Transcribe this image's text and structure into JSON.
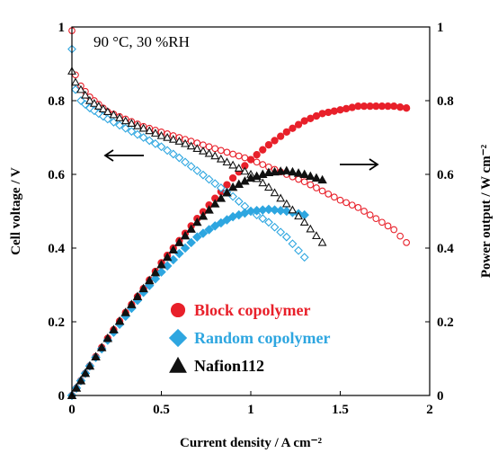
{
  "chart_data": {
    "type": "scatter",
    "annotation": "90 °C, 30 %RH",
    "xlabel": "Current density / A cm⁻²",
    "ylabel_left": "Cell voltage / V",
    "ylabel_right": "Power output / W cm⁻²",
    "xlim": [
      0,
      2
    ],
    "ylim_left": [
      0,
      1
    ],
    "ylim_right": [
      0,
      1
    ],
    "x_ticks": [
      "0",
      "0.5",
      "1",
      "1.5",
      "2"
    ],
    "y_ticks_left": [
      "0",
      "0.2",
      "0.4",
      "0.6",
      "0.8",
      "1"
    ],
    "y_ticks_right": [
      "0",
      "0.2",
      "0.4",
      "0.6",
      "0.8",
      "1"
    ],
    "grid": false,
    "legend_position": "bottom-center",
    "arrows": [
      {
        "direction": "left",
        "axis": "voltage"
      },
      {
        "direction": "right",
        "axis": "power"
      }
    ],
    "series": [
      {
        "name": "Block  copolymer",
        "color": "#e8202a",
        "marker": "circle",
        "voltage": [
          [
            0,
            0.99
          ],
          [
            0.02,
            0.87
          ],
          [
            0.05,
            0.84
          ],
          [
            0.1,
            0.81
          ],
          [
            0.15,
            0.79
          ],
          [
            0.2,
            0.77
          ],
          [
            0.3,
            0.75
          ],
          [
            0.4,
            0.73
          ],
          [
            0.5,
            0.715
          ],
          [
            0.6,
            0.7
          ],
          [
            0.7,
            0.685
          ],
          [
            0.8,
            0.67
          ],
          [
            0.9,
            0.655
          ],
          [
            1.0,
            0.64
          ],
          [
            1.1,
            0.62
          ],
          [
            1.2,
            0.6
          ],
          [
            1.3,
            0.58
          ],
          [
            1.4,
            0.555
          ],
          [
            1.5,
            0.53
          ],
          [
            1.6,
            0.51
          ],
          [
            1.7,
            0.48
          ],
          [
            1.8,
            0.45
          ],
          [
            1.87,
            0.415
          ]
        ],
        "power": [
          [
            0,
            0
          ],
          [
            0.05,
            0.04
          ],
          [
            0.1,
            0.08
          ],
          [
            0.2,
            0.155
          ],
          [
            0.3,
            0.225
          ],
          [
            0.4,
            0.29
          ],
          [
            0.5,
            0.36
          ],
          [
            0.6,
            0.42
          ],
          [
            0.7,
            0.48
          ],
          [
            0.8,
            0.535
          ],
          [
            0.9,
            0.59
          ],
          [
            1.0,
            0.64
          ],
          [
            1.1,
            0.68
          ],
          [
            1.2,
            0.715
          ],
          [
            1.3,
            0.745
          ],
          [
            1.4,
            0.765
          ],
          [
            1.5,
            0.775
          ],
          [
            1.6,
            0.785
          ],
          [
            1.7,
            0.785
          ],
          [
            1.8,
            0.785
          ],
          [
            1.87,
            0.78
          ]
        ]
      },
      {
        "name": "Random copolymer",
        "color": "#2ea6e0",
        "marker": "diamond",
        "voltage": [
          [
            0,
            0.94
          ],
          [
            0.02,
            0.83
          ],
          [
            0.05,
            0.8
          ],
          [
            0.1,
            0.78
          ],
          [
            0.15,
            0.765
          ],
          [
            0.2,
            0.75
          ],
          [
            0.3,
            0.725
          ],
          [
            0.4,
            0.7
          ],
          [
            0.5,
            0.675
          ],
          [
            0.6,
            0.645
          ],
          [
            0.7,
            0.61
          ],
          [
            0.8,
            0.575
          ],
          [
            0.9,
            0.54
          ],
          [
            1.0,
            0.5
          ],
          [
            1.1,
            0.47
          ],
          [
            1.2,
            0.43
          ],
          [
            1.3,
            0.375
          ]
        ],
        "power": [
          [
            0,
            0
          ],
          [
            0.05,
            0.04
          ],
          [
            0.1,
            0.08
          ],
          [
            0.2,
            0.15
          ],
          [
            0.3,
            0.215
          ],
          [
            0.4,
            0.28
          ],
          [
            0.5,
            0.335
          ],
          [
            0.6,
            0.385
          ],
          [
            0.7,
            0.43
          ],
          [
            0.8,
            0.46
          ],
          [
            0.9,
            0.485
          ],
          [
            1.0,
            0.5
          ],
          [
            1.1,
            0.505
          ],
          [
            1.2,
            0.5
          ],
          [
            1.3,
            0.49
          ]
        ]
      },
      {
        "name": "Nafion112",
        "color": "#111111",
        "marker": "triangle",
        "voltage": [
          [
            0,
            0.88
          ],
          [
            0.02,
            0.85
          ],
          [
            0.05,
            0.83
          ],
          [
            0.1,
            0.8
          ],
          [
            0.15,
            0.785
          ],
          [
            0.2,
            0.77
          ],
          [
            0.3,
            0.745
          ],
          [
            0.4,
            0.725
          ],
          [
            0.5,
            0.705
          ],
          [
            0.6,
            0.69
          ],
          [
            0.7,
            0.67
          ],
          [
            0.8,
            0.65
          ],
          [
            0.9,
            0.625
          ],
          [
            1.0,
            0.6
          ],
          [
            1.1,
            0.565
          ],
          [
            1.2,
            0.52
          ],
          [
            1.3,
            0.47
          ],
          [
            1.4,
            0.415
          ]
        ],
        "power": [
          [
            0,
            0
          ],
          [
            0.05,
            0.04
          ],
          [
            0.1,
            0.08
          ],
          [
            0.2,
            0.155
          ],
          [
            0.3,
            0.225
          ],
          [
            0.4,
            0.29
          ],
          [
            0.5,
            0.355
          ],
          [
            0.6,
            0.415
          ],
          [
            0.7,
            0.47
          ],
          [
            0.8,
            0.52
          ],
          [
            0.9,
            0.565
          ],
          [
            1.0,
            0.59
          ],
          [
            1.1,
            0.605
          ],
          [
            1.2,
            0.61
          ],
          [
            1.3,
            0.6
          ],
          [
            1.4,
            0.585
          ]
        ]
      }
    ]
  }
}
